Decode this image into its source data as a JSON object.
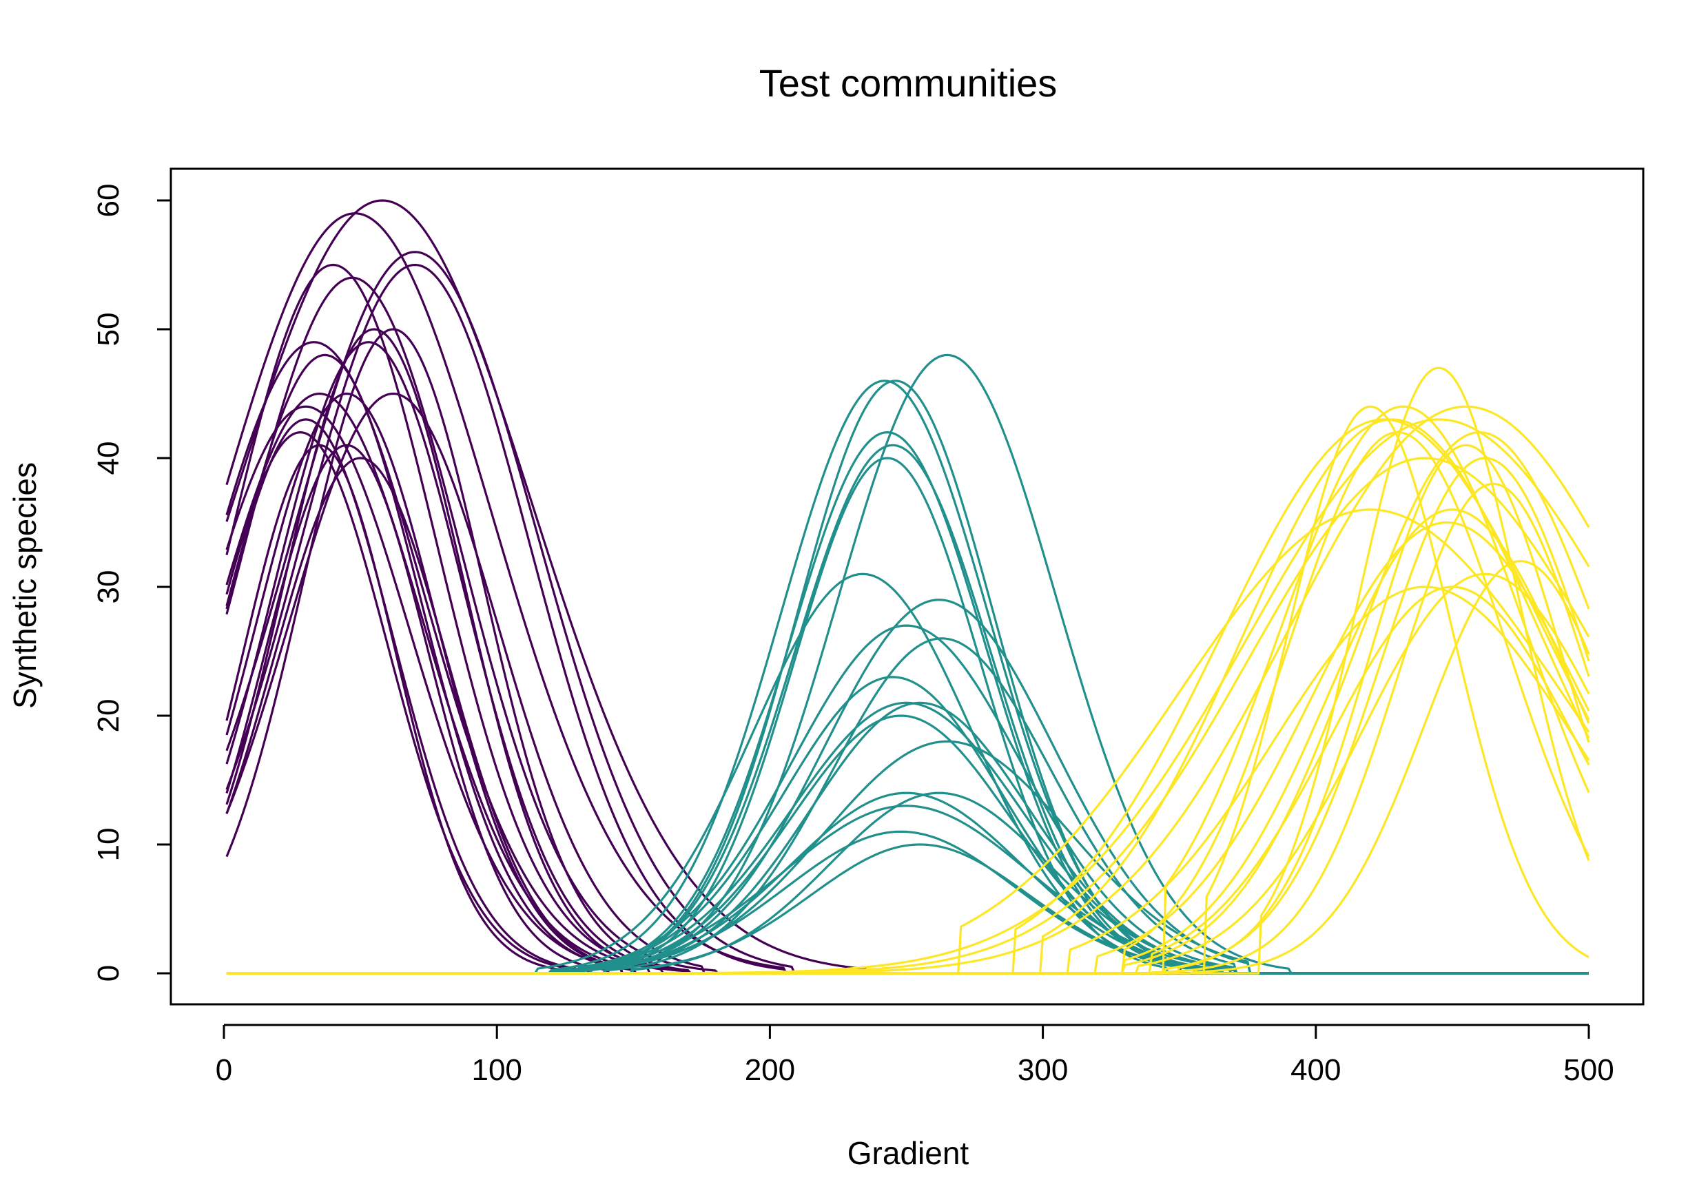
{
  "chart_data": {
    "type": "line",
    "title": "Test communities",
    "xlabel": "Gradient",
    "ylabel": "Synthetic species",
    "xlim": [
      0,
      500
    ],
    "ylim": [
      0,
      60
    ],
    "x_ticks": [
      0,
      100,
      200,
      300,
      400,
      500
    ],
    "y_ticks": [
      0,
      10,
      20,
      30,
      40,
      50,
      60
    ],
    "grid": false,
    "legend": "none",
    "curve_model": "gaussian response: y = height * exp(-0.5*((x-optimum)/width)^2), truncated to 0 outside [start, end]",
    "groups": [
      {
        "color": "#440154",
        "curves": [
          {
            "optimum": 58,
            "height": 60,
            "width": 55,
            "start": 0,
            "end": 235
          },
          {
            "optimum": 48,
            "height": 59,
            "width": 50,
            "start": 0,
            "end": 205
          },
          {
            "optimum": 70,
            "height": 56,
            "width": 45,
            "start": 0,
            "end": 208
          },
          {
            "optimum": 70,
            "height": 55,
            "width": 42,
            "start": 0,
            "end": 205
          },
          {
            "optimum": 40,
            "height": 55,
            "width": 38,
            "start": 0,
            "end": 170
          },
          {
            "optimum": 47,
            "height": 54,
            "width": 40,
            "start": 0,
            "end": 180
          },
          {
            "optimum": 55,
            "height": 50,
            "width": 33,
            "start": 0,
            "end": 160
          },
          {
            "optimum": 62,
            "height": 50,
            "width": 33,
            "start": 0,
            "end": 170
          },
          {
            "optimum": 53,
            "height": 49,
            "width": 35,
            "start": 0,
            "end": 170
          },
          {
            "optimum": 33,
            "height": 49,
            "width": 40,
            "start": 0,
            "end": 155
          },
          {
            "optimum": 37,
            "height": 48,
            "width": 35,
            "start": 0,
            "end": 150
          },
          {
            "optimum": 62,
            "height": 45,
            "width": 38,
            "start": 0,
            "end": 175
          },
          {
            "optimum": 35,
            "height": 45,
            "width": 38,
            "start": 0,
            "end": 145
          },
          {
            "optimum": 45,
            "height": 45,
            "width": 33,
            "start": 0,
            "end": 145
          },
          {
            "optimum": 30,
            "height": 44,
            "width": 38,
            "start": 0,
            "end": 140
          },
          {
            "optimum": 30,
            "height": 43,
            "width": 32,
            "start": 0,
            "end": 133
          },
          {
            "optimum": 28,
            "height": 42,
            "width": 32,
            "start": 0,
            "end": 130
          },
          {
            "optimum": 45,
            "height": 41,
            "width": 30,
            "start": 0,
            "end": 140
          },
          {
            "optimum": 35,
            "height": 41,
            "width": 28,
            "start": 0,
            "end": 130
          },
          {
            "optimum": 50,
            "height": 40,
            "width": 32,
            "start": 0,
            "end": 150
          }
        ]
      },
      {
        "color": "#21908C",
        "curves": [
          {
            "optimum": 265,
            "height": 48,
            "width": 40,
            "start": 140,
            "end": 390
          },
          {
            "optimum": 242,
            "height": 46,
            "width": 38,
            "start": 120,
            "end": 360
          },
          {
            "optimum": 246,
            "height": 46,
            "width": 36,
            "start": 130,
            "end": 360
          },
          {
            "optimum": 243,
            "height": 42,
            "width": 36,
            "start": 120,
            "end": 350
          },
          {
            "optimum": 245,
            "height": 41,
            "width": 36,
            "start": 125,
            "end": 355
          },
          {
            "optimum": 243,
            "height": 40,
            "width": 34,
            "start": 120,
            "end": 345
          },
          {
            "optimum": 234,
            "height": 31,
            "width": 40,
            "start": 115,
            "end": 365
          },
          {
            "optimum": 262,
            "height": 29,
            "width": 42,
            "start": 135,
            "end": 375
          },
          {
            "optimum": 250,
            "height": 27,
            "width": 42,
            "start": 130,
            "end": 370
          },
          {
            "optimum": 263,
            "height": 26,
            "width": 40,
            "start": 140,
            "end": 370
          },
          {
            "optimum": 245,
            "height": 23,
            "width": 40,
            "start": 120,
            "end": 365
          },
          {
            "optimum": 250,
            "height": 21,
            "width": 42,
            "start": 125,
            "end": 370
          },
          {
            "optimum": 255,
            "height": 21,
            "width": 40,
            "start": 140,
            "end": 365
          },
          {
            "optimum": 248,
            "height": 20,
            "width": 40,
            "start": 135,
            "end": 360
          },
          {
            "optimum": 265,
            "height": 18,
            "width": 45,
            "start": 150,
            "end": 375
          },
          {
            "optimum": 250,
            "height": 14,
            "width": 42,
            "start": 140,
            "end": 370
          },
          {
            "optimum": 262,
            "height": 14,
            "width": 40,
            "start": 150,
            "end": 368
          },
          {
            "optimum": 250,
            "height": 13,
            "width": 45,
            "start": 135,
            "end": 368
          },
          {
            "optimum": 248,
            "height": 11,
            "width": 42,
            "start": 140,
            "end": 365
          },
          {
            "optimum": 255,
            "height": 10,
            "width": 40,
            "start": 150,
            "end": 360
          }
        ]
      },
      {
        "color": "#FDE725",
        "curves": [
          {
            "optimum": 445,
            "height": 47,
            "width": 30,
            "start": 380,
            "end": 500
          },
          {
            "optimum": 432,
            "height": 44,
            "width": 45,
            "start": 345,
            "end": 500
          },
          {
            "optimum": 420,
            "height": 44,
            "width": 30,
            "start": 360,
            "end": 500
          },
          {
            "optimum": 425,
            "height": 43,
            "width": 60,
            "start": 290,
            "end": 500
          },
          {
            "optimum": 428,
            "height": 43,
            "width": 55,
            "start": 300,
            "end": 500
          },
          {
            "optimum": 430,
            "height": 42,
            "width": 40,
            "start": 330,
            "end": 500
          },
          {
            "optimum": 460,
            "height": 42,
            "width": 45,
            "start": 330,
            "end": 500
          },
          {
            "optimum": 455,
            "height": 41,
            "width": 35,
            "start": 350,
            "end": 500
          },
          {
            "optimum": 462,
            "height": 40,
            "width": 38,
            "start": 345,
            "end": 500
          },
          {
            "optimum": 465,
            "height": 38,
            "width": 35,
            "start": 340,
            "end": 500
          },
          {
            "optimum": 450,
            "height": 36,
            "width": 45,
            "start": 330,
            "end": 500
          },
          {
            "optimum": 420,
            "height": 36,
            "width": 70,
            "start": 270,
            "end": 500
          },
          {
            "optimum": 448,
            "height": 35,
            "width": 50,
            "start": 320,
            "end": 500
          },
          {
            "optimum": 475,
            "height": 32,
            "width": 35,
            "start": 355,
            "end": 500
          },
          {
            "optimum": 462,
            "height": 31,
            "width": 45,
            "start": 335,
            "end": 500
          },
          {
            "optimum": 440,
            "height": 30,
            "width": 55,
            "start": 310,
            "end": 500
          },
          {
            "optimum": 450,
            "height": 30,
            "width": 45,
            "start": 340,
            "end": 500
          },
          {
            "optimum": 445,
            "height": 43,
            "width": 70,
            "start": 150,
            "end": 500
          },
          {
            "optimum": 455,
            "height": 44,
            "width": 65,
            "start": 160,
            "end": 500
          },
          {
            "optimum": 440,
            "height": 40,
            "width": 65,
            "start": 165,
            "end": 500
          }
        ]
      }
    ]
  }
}
